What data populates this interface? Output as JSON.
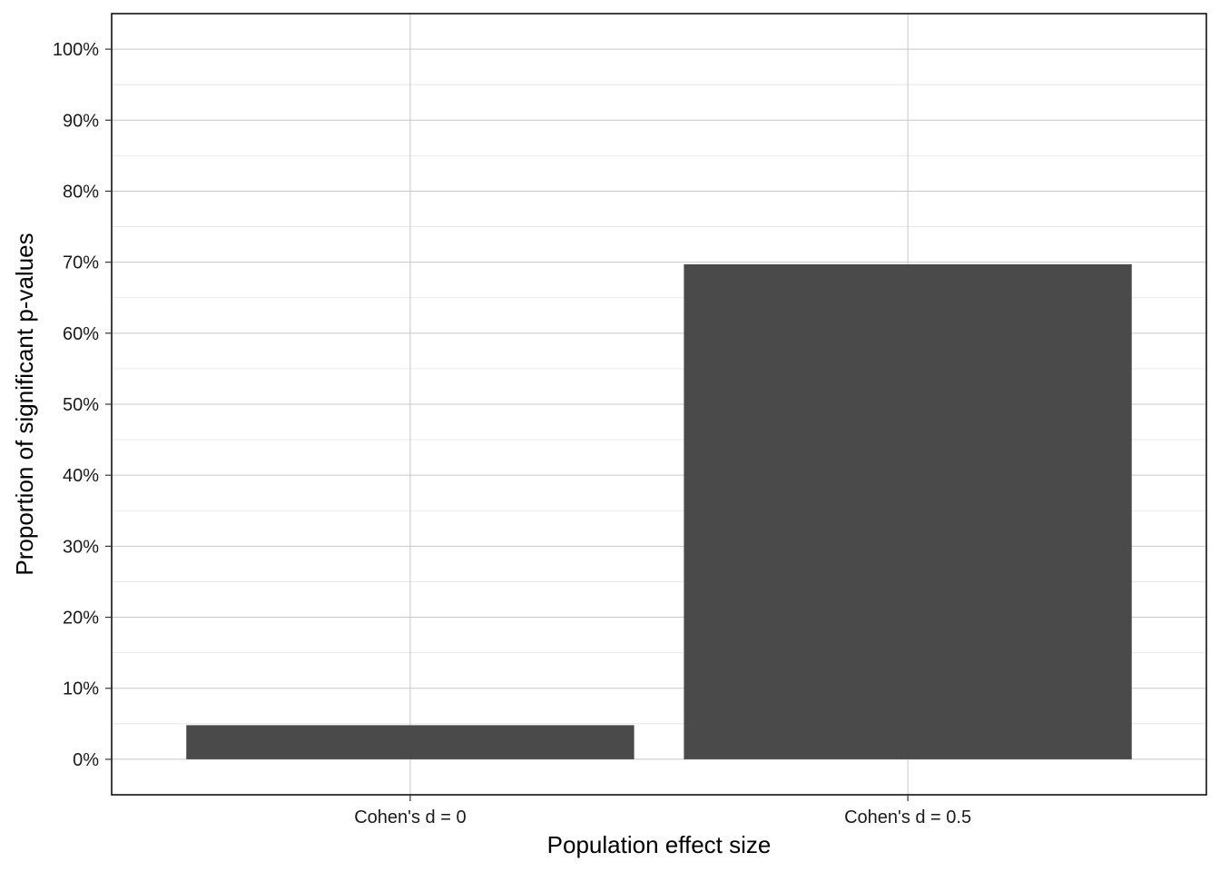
{
  "chart_data": {
    "type": "bar",
    "title": "",
    "xlabel": "Population effect size",
    "ylabel": "Proportion of significant p-values",
    "categories": [
      "Cohen's d = 0",
      "Cohen's d = 0.5"
    ],
    "values": [
      0.048,
      0.697
    ],
    "ylim": [
      -0.05,
      1.05
    ],
    "yticks": [
      0,
      0.1,
      0.2,
      0.3,
      0.4,
      0.5,
      0.6,
      0.7,
      0.8,
      0.9,
      1.0
    ],
    "ytick_labels": [
      "0%",
      "10%",
      "20%",
      "30%",
      "40%",
      "50%",
      "60%",
      "70%",
      "80%",
      "90%",
      "100%"
    ],
    "grid": true,
    "bar_color": "#4a4a4a",
    "grid_color": "#c8c8c8",
    "minor_grid_color": "#e4e4e4",
    "panel_border_color": "#000000"
  }
}
